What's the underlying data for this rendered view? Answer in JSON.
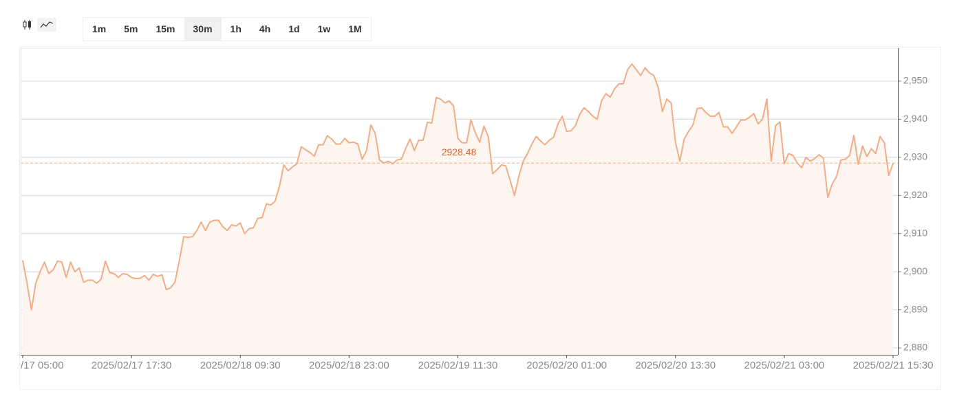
{
  "toolbar": {
    "intervals": [
      "1m",
      "5m",
      "15m",
      "30m",
      "1h",
      "4h",
      "1d",
      "1w",
      "1M"
    ],
    "active": "30m"
  },
  "chart_data": {
    "type": "line",
    "color": "#f0ad85",
    "fill": "#fdf5f0",
    "grid": true,
    "categories": [
      "/17 05:00",
      null,
      null,
      null,
      null,
      null,
      null,
      null,
      null,
      null,
      null,
      null,
      null,
      null,
      null,
      null,
      null,
      null,
      null,
      null,
      null,
      null,
      null,
      null,
      null,
      "2025/02/17 17:30",
      null,
      null,
      null,
      null,
      null,
      null,
      null,
      null,
      null,
      null,
      null,
      null,
      null,
      null,
      null,
      null,
      null,
      null,
      null,
      null,
      null,
      null,
      null,
      null,
      "2025/02/18 09:30",
      null,
      null,
      null,
      null,
      null,
      null,
      null,
      null,
      null,
      null,
      null,
      null,
      null,
      null,
      null,
      null,
      null,
      null,
      null,
      null,
      null,
      null,
      null,
      null,
      "2025/02/18 23:00",
      null,
      null,
      null,
      null,
      null,
      null,
      null,
      null,
      null,
      null,
      null,
      null,
      null,
      null,
      null,
      null,
      null,
      null,
      null,
      null,
      null,
      null,
      null,
      null,
      "2025/02/19 11:30",
      null,
      null,
      null,
      null,
      null,
      null,
      null,
      null,
      null,
      null,
      null,
      null,
      null,
      null,
      null,
      null,
      null,
      null,
      null,
      null,
      null,
      null,
      null,
      null,
      "2025/02/20 01:00",
      null,
      null,
      null,
      null,
      null,
      null,
      null,
      null,
      null,
      null,
      null,
      null,
      null,
      null,
      null,
      null,
      null,
      null,
      null,
      null,
      null,
      null,
      null,
      null,
      "2025/02/20 13:30",
      null,
      null,
      null,
      null,
      null,
      null,
      null,
      null,
      null,
      null,
      null,
      null,
      null,
      null,
      null,
      null,
      null,
      null,
      null,
      null,
      null,
      null,
      null,
      null,
      "2025/02/21 03:00",
      null,
      null,
      null,
      null,
      null,
      null,
      null,
      null,
      null,
      null,
      null,
      null,
      null,
      null,
      null,
      null,
      null,
      null,
      null,
      null,
      null,
      null,
      null,
      null,
      "2025/02/21 15:30"
    ],
    "values": [
      2903,
      2897,
      2890,
      2897,
      2900,
      2902.5,
      2899.5,
      2900.5,
      2902.8,
      2902.5,
      2898.5,
      2902.5,
      2900,
      2901,
      2897.2,
      2897.8,
      2897.8,
      2897,
      2898,
      2902.8,
      2899.8,
      2899.5,
      2898.5,
      2899.5,
      2899.3,
      2898.5,
      2898.2,
      2898.3,
      2899,
      2897.8,
      2899.3,
      2898.8,
      2899.2,
      2895.3,
      2895.8,
      2897.3,
      2903,
      2909.2,
      2909,
      2909.2,
      2910.8,
      2913,
      2910.8,
      2913,
      2913.5,
      2913.5,
      2911.8,
      2910.8,
      2912.3,
      2912,
      2912.8,
      2910,
      2911.3,
      2911.5,
      2914,
      2914.2,
      2917.8,
      2917.5,
      2918.5,
      2922.5,
      2928,
      2926.5,
      2927.5,
      2928.3,
      2932.8,
      2932,
      2931.3,
      2930.3,
      2933.3,
      2933.3,
      2935.7,
      2934.8,
      2933.5,
      2933.5,
      2935,
      2933.8,
      2934,
      2933.5,
      2929.5,
      2931.8,
      2938.5,
      2936.3,
      2929.3,
      2928.5,
      2929,
      2928.3,
      2929.3,
      2929.5,
      2932.3,
      2934.8,
      2931.8,
      2934.5,
      2934.5,
      2939.2,
      2939,
      2945.7,
      2945.3,
      2944.3,
      2944.8,
      2943.5,
      2935,
      2933.8,
      2933.8,
      2939.8,
      2936.5,
      2934,
      2938.2,
      2935.3,
      2925.7,
      2926.8,
      2928,
      2927.8,
      2924,
      2920,
      2925,
      2929,
      2931,
      2933.5,
      2935.5,
      2934.3,
      2933.3,
      2934.5,
      2935.3,
      2938.8,
      2940.8,
      2936.8,
      2937,
      2938.3,
      2941.3,
      2943,
      2942,
      2940.8,
      2940,
      2944.8,
      2946.7,
      2945.8,
      2948,
      2949.3,
      2949.3,
      2953,
      2954.5,
      2953,
      2951.5,
      2953.5,
      2952.2,
      2951.5,
      2948.5,
      2942,
      2945.3,
      2944.3,
      2934,
      2929,
      2934.8,
      2936.8,
      2938.5,
      2942.8,
      2943,
      2941.8,
      2940.8,
      2940.8,
      2941.8,
      2938,
      2938,
      2936.3,
      2938,
      2939.8,
      2939.8,
      2940.5,
      2941.5,
      2938.8,
      2940,
      2945.3,
      2929,
      2938.3,
      2939.3,
      2928.3,
      2931,
      2930.5,
      2928.5,
      2927.3,
      2930,
      2929,
      2929.7,
      2930.7,
      2929.8,
      2919.5,
      2923,
      2925,
      2929.3,
      2929.5,
      2930.5,
      2935.7,
      2928.2,
      2933,
      2930.2,
      2932.3,
      2931,
      2935.5,
      2933.8,
      2925.3,
      2928.48
    ],
    "ylim": [
      2878.2,
      2958.66
    ],
    "yticks": [
      {
        "value": 2880,
        "label": "2,880"
      },
      {
        "value": 2890,
        "label": "2,890"
      },
      {
        "value": 2900,
        "label": "2,900"
      },
      {
        "value": 2910,
        "label": "2,910"
      },
      {
        "value": 2920,
        "label": "2,920"
      },
      {
        "value": 2930,
        "label": "2,930"
      },
      {
        "value": 2940,
        "label": "2,940"
      },
      {
        "value": 2950,
        "label": "2,950"
      }
    ],
    "last_price": 2928.48,
    "last_price_color": "#e0662f"
  }
}
